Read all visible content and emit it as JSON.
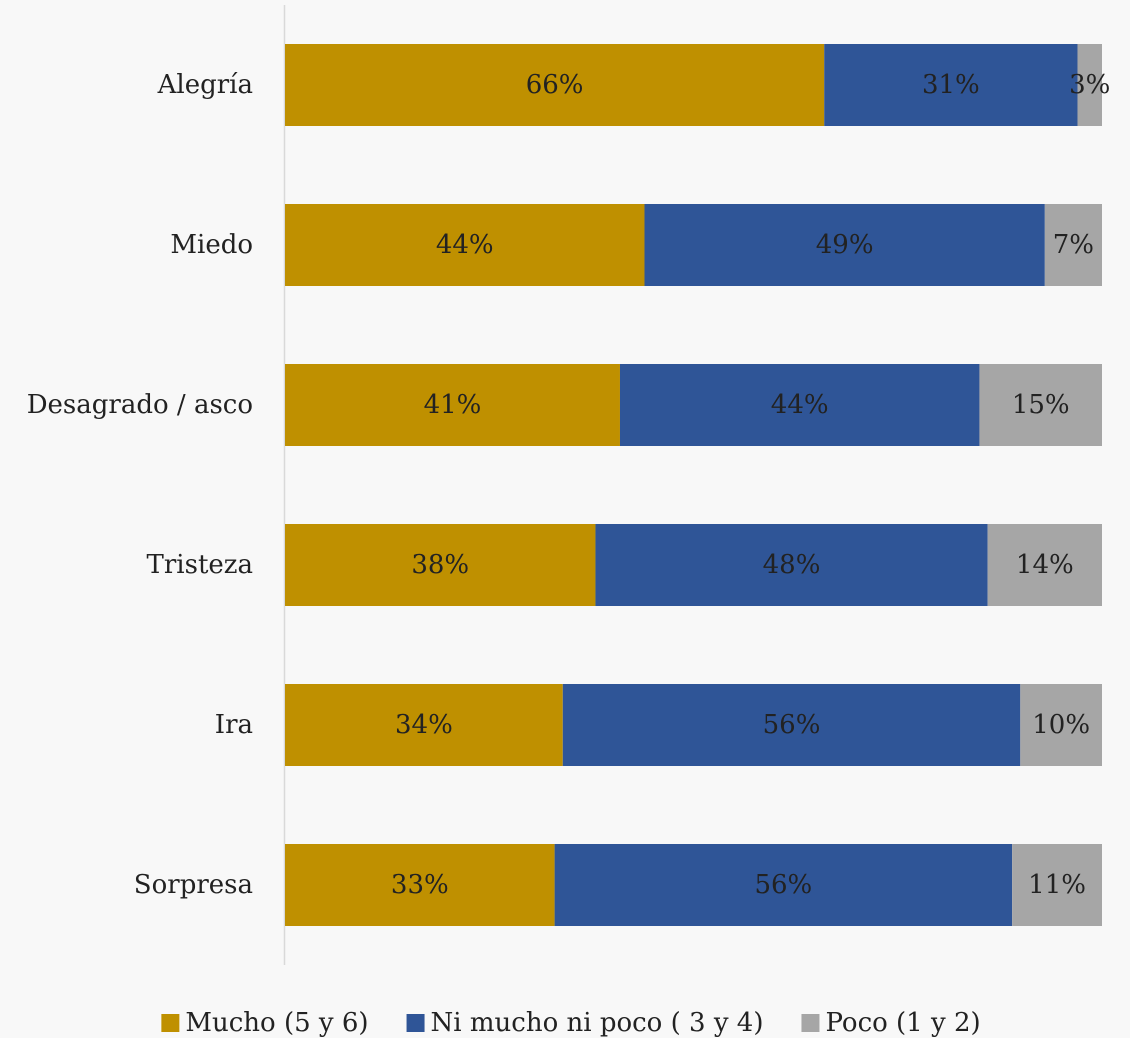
{
  "chart_data": {
    "type": "bar",
    "orientation": "horizontal",
    "stacked": "percent",
    "categories": [
      "Alegría",
      "Miedo",
      "Desagrado / asco",
      "Tristeza",
      "Ira",
      "Sorpresa"
    ],
    "series": [
      {
        "name": "Mucho (5 y 6)",
        "color": "#bf9000",
        "values": [
          66,
          44,
          41,
          38,
          34,
          33
        ],
        "labels": [
          "66%",
          "44%",
          "41%",
          "38%",
          "34%",
          "33%"
        ]
      },
      {
        "name": "Ni mucho ni poco ( 3 y 4)",
        "color": "#2f5597",
        "values": [
          31,
          49,
          44,
          48,
          56,
          56
        ],
        "labels": [
          "31%",
          "49%",
          "44%",
          "48%",
          "56%",
          "56%"
        ]
      },
      {
        "name": "Poco (1 y 2)",
        "color": "#a6a6a6",
        "values": [
          3,
          7,
          15,
          14,
          10,
          11
        ],
        "labels": [
          "3%",
          "7%",
          "15%",
          "14%",
          "10%",
          "11%"
        ]
      }
    ],
    "title": "",
    "xlabel": "",
    "ylabel": "",
    "xlim": [
      0,
      100
    ],
    "grid": false,
    "legend_position": "bottom"
  }
}
